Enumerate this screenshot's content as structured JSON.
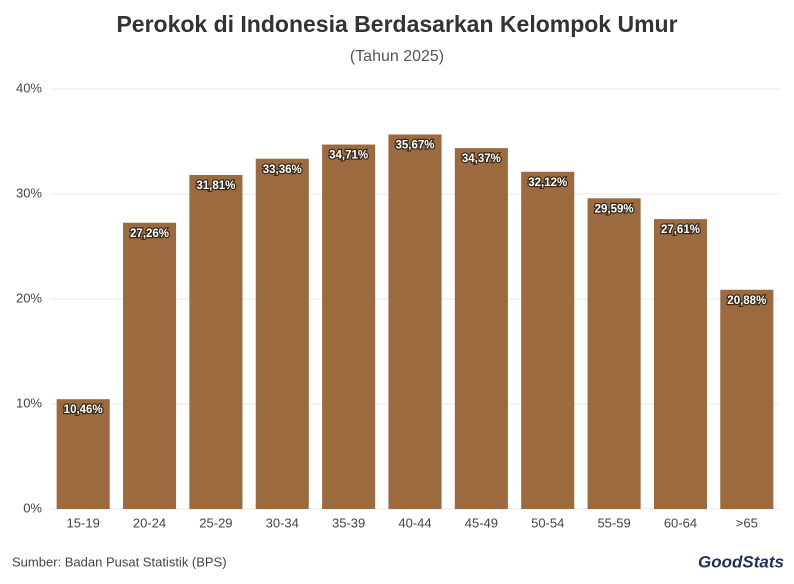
{
  "chart_data": {
    "type": "bar",
    "title": "Perokok di Indonesia Berdasarkan Kelompok Umur",
    "subtitle": "(Tahun 2025)",
    "categories": [
      "15-19",
      "20-24",
      "25-29",
      "30-34",
      "35-39",
      "40-44",
      "45-49",
      "50-54",
      "55-59",
      "60-64",
      ">65"
    ],
    "values": [
      10.46,
      27.26,
      31.81,
      33.36,
      34.71,
      35.67,
      34.37,
      32.12,
      29.59,
      27.61,
      20.88
    ],
    "value_labels": [
      "10,46%",
      "27,26%",
      "31,81%",
      "33,36%",
      "34,71%",
      "35,67%",
      "34,37%",
      "32,12%",
      "29,59%",
      "27,61%",
      "20,88%"
    ],
    "color": "#9b6b3f",
    "ylim": [
      0,
      40
    ],
    "yticks": [
      {
        "value": 0,
        "label": "0%"
      },
      {
        "value": 10,
        "label": "10%"
      },
      {
        "value": 20,
        "label": "20%"
      },
      {
        "value": 30,
        "label": "30%"
      },
      {
        "value": 40,
        "label": "40%"
      }
    ],
    "grid": true,
    "source": "Sumber: Badan Pusat Statistik (BPS)",
    "brand": "GoodStats"
  }
}
